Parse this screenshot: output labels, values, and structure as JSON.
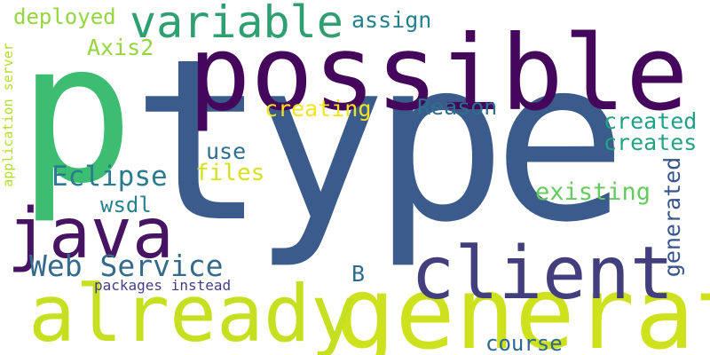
{
  "words": {
    "type": {
      "text": "type",
      "color": "#3b5b8c"
    },
    "p": {
      "text": "p",
      "color": "#3dbd71"
    },
    "possible": {
      "text": "possible",
      "color": "#45075b"
    },
    "generate": {
      "text": "generate",
      "color": "#cde11d"
    },
    "already": {
      "text": "already",
      "color": "#c6e021"
    },
    "client": {
      "text": "client",
      "color": "#433f7e"
    },
    "java": {
      "text": "java",
      "color": "#471463"
    },
    "variable": {
      "text": "variable",
      "color": "#2f9e71"
    },
    "web_service": {
      "text": "Web Service",
      "color": "#346a8b"
    },
    "eclipse": {
      "text": "Eclipse",
      "color": "#2a7b8e"
    },
    "deployed": {
      "text": "deployed",
      "color": "#94d640"
    },
    "assign": {
      "text": "assign",
      "color": "#23808d"
    },
    "axis2": {
      "text": "Axis2",
      "color": "#96d540"
    },
    "creating": {
      "text": "creating",
      "color": "#f1e51d"
    },
    "reason": {
      "text": "Reason",
      "color": "#2c6f8e"
    },
    "created": {
      "text": "created",
      "color": "#1fa187"
    },
    "creates": {
      "text": "creates",
      "color": "#24a383"
    },
    "use": {
      "text": "use",
      "color": "#2d6f8e"
    },
    "files": {
      "text": "files",
      "color": "#d6e21d"
    },
    "existing": {
      "text": "existing",
      "color": "#65cb5e"
    },
    "generated": {
      "text": "generated",
      "color": "#3a548c"
    },
    "wsdl": {
      "text": "wsdl",
      "color": "#25828e"
    },
    "b": {
      "text": "B",
      "color": "#2f6b8e"
    },
    "packages_instead": {
      "text": "packages instead",
      "color": "#433e85"
    },
    "course": {
      "text": "course",
      "color": "#30688e"
    },
    "application_server": {
      "text": "application server",
      "color": "#b2dd2d"
    }
  }
}
